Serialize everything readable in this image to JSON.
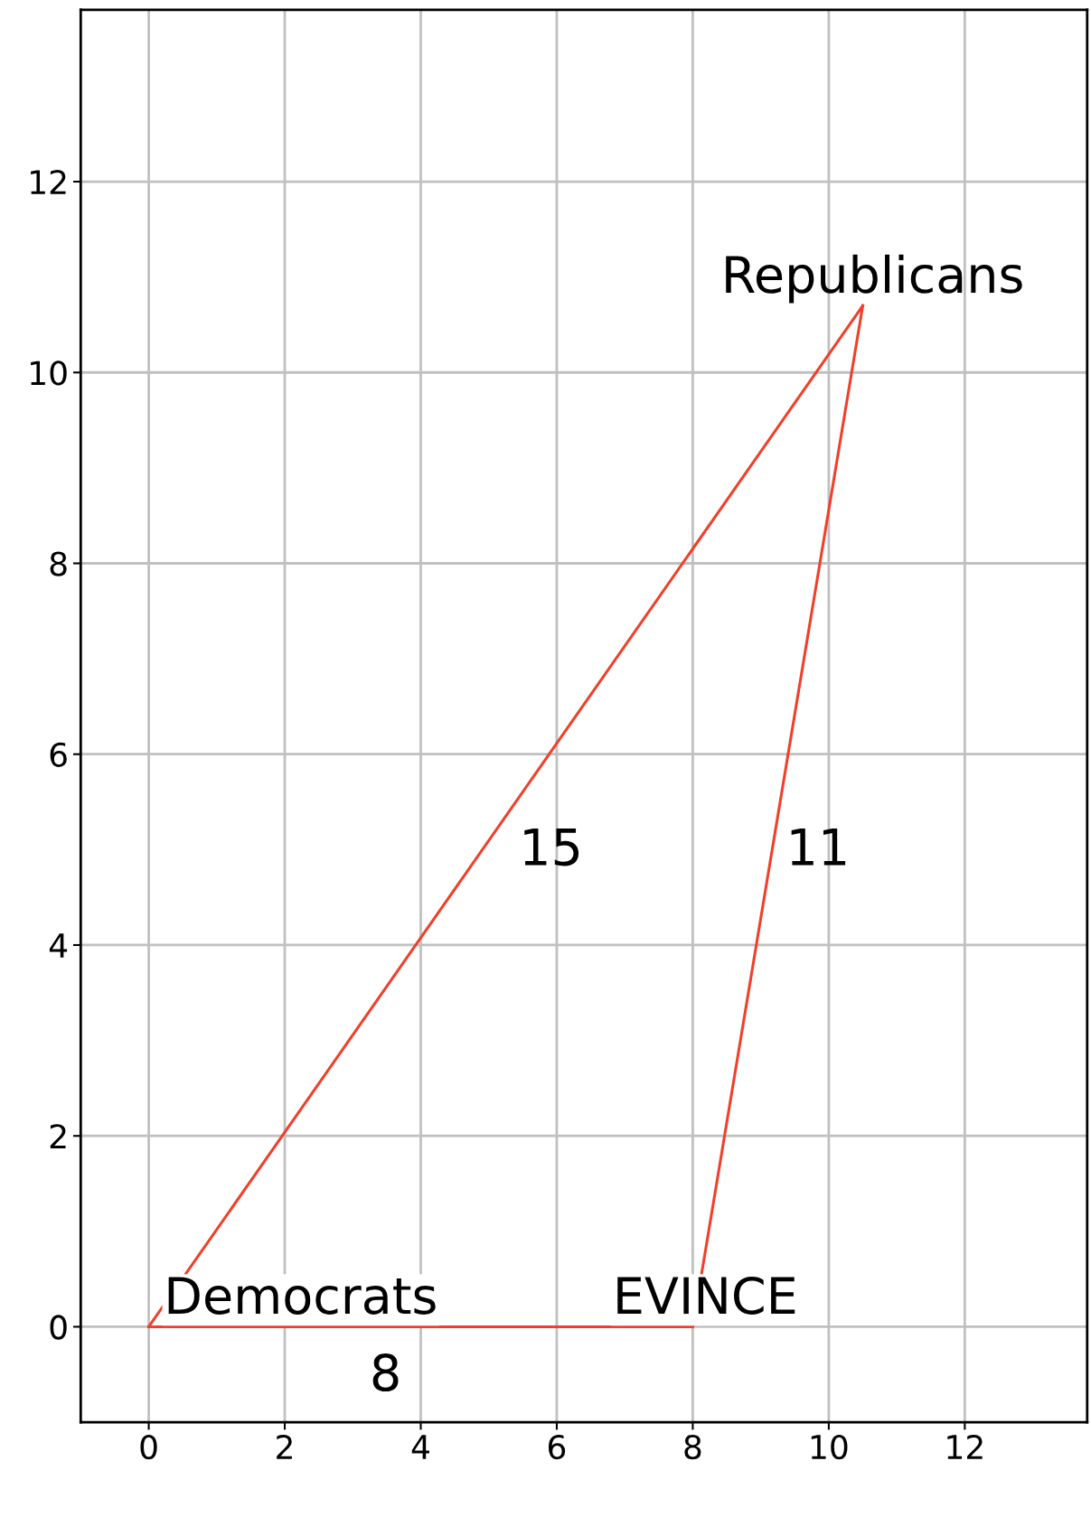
{
  "chart_data": {
    "type": "line",
    "series": [
      {
        "color": "#f0402a",
        "x": [
          0,
          8
        ],
        "values": [
          0,
          0
        ]
      },
      {
        "color": "#f0402a",
        "x": [
          8,
          10.5
        ],
        "values": [
          0,
          10.7
        ]
      },
      {
        "color": "#f0402a",
        "x": [
          0,
          10.5
        ],
        "values": [
          0,
          10.7
        ]
      }
    ],
    "annotations": [
      "Democrats",
      "EVINCE",
      "Republicans",
      "15",
      "11",
      "8"
    ],
    "xlim": [
      -1,
      13.8
    ],
    "ylim": [
      -1,
      13.8
    ],
    "xticks": [
      0,
      2,
      4,
      6,
      8,
      10,
      12
    ],
    "yticks": [
      0,
      2,
      4,
      6,
      8,
      10,
      12
    ],
    "grid": true,
    "line_style": "solid",
    "marker": "none"
  }
}
